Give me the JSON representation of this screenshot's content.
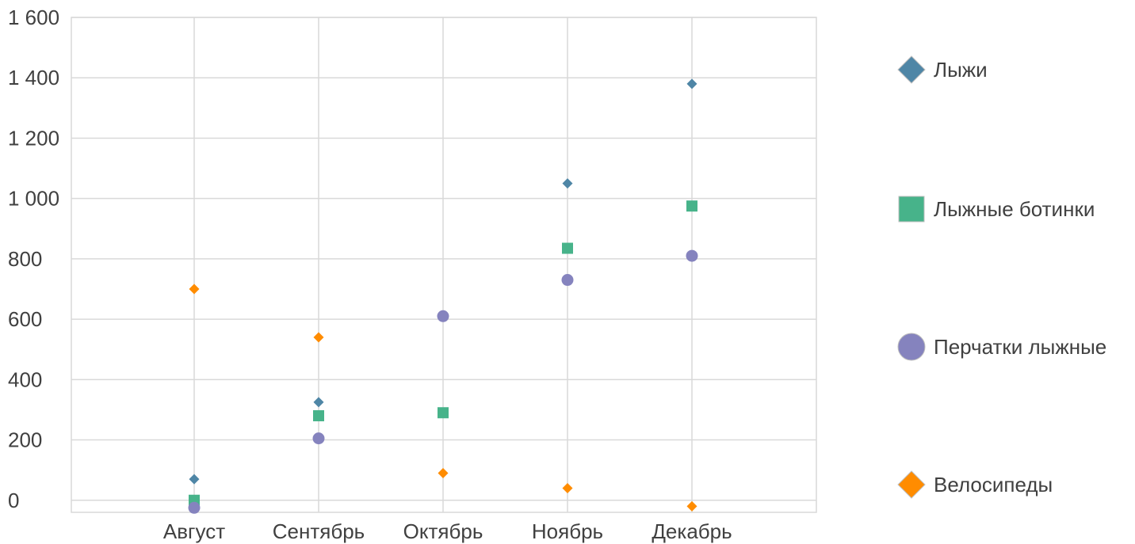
{
  "chart_data": {
    "type": "scatter",
    "categories": [
      "Август",
      "Сентябрь",
      "Октябрь",
      "Ноябрь",
      "Декабрь"
    ],
    "ylim": [
      -40,
      1600
    ],
    "yticks": [
      0,
      200,
      400,
      600,
      800,
      1000,
      1200,
      1400,
      1600
    ],
    "ytick_labels": [
      "0",
      "200",
      "400",
      "600",
      "800",
      "1 000",
      "1 200",
      "1 400",
      "1 600"
    ],
    "grid": true,
    "legend_position": "right",
    "series": [
      {
        "name": "Лыжи",
        "marker": "diamond",
        "color": "#4f86a6",
        "values": [
          70,
          325,
          null,
          1050,
          1380
        ]
      },
      {
        "name": "Лыжные ботинки",
        "marker": "square",
        "color": "#47b38a",
        "values": [
          0,
          280,
          290,
          835,
          975
        ]
      },
      {
        "name": "Перчатки лыжные",
        "marker": "circle",
        "color": "#8583be",
        "values": [
          -25,
          205,
          610,
          730,
          810
        ]
      },
      {
        "name": "Велосипеды",
        "marker": "diamond",
        "color": "#ff8c00",
        "values": [
          700,
          540,
          90,
          40,
          -20
        ]
      }
    ]
  }
}
